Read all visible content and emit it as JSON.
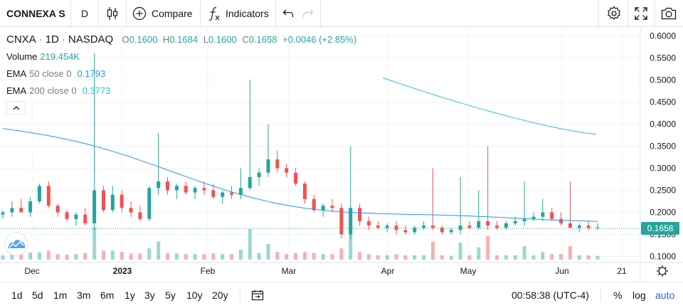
{
  "toolbar": {
    "symbol": "CONNEXA S",
    "interval": "D",
    "compare_label": "Compare",
    "indicators_label": "Indicators"
  },
  "legend": {
    "symbol": "CNXA",
    "interval": "1D",
    "exchange": "NASDAQ",
    "o_label": "O",
    "o_value": "0.1600",
    "h_label": "H",
    "h_value": "0.1684",
    "l_label": "L",
    "l_value": "0.1600",
    "c_label": "C",
    "c_value": "0.1658",
    "change": "+0.0046 (+2.85%)",
    "volume_label": "Volume",
    "volume_value": "219.454K",
    "ema50_label": "EMA",
    "ema50_params": "50 close 0",
    "ema50_value": "0.1793",
    "ema200_label": "EMA",
    "ema200_params": "200 close 0",
    "ema200_value": "0.3773"
  },
  "price_axis": {
    "ticks": [
      "0.6000",
      "0.5500",
      "0.5000",
      "0.4500",
      "0.4000",
      "0.3500",
      "0.3000",
      "0.2500",
      "0.2000",
      "0.1500",
      "0.1000"
    ],
    "last_price": "0.1658"
  },
  "time_axis": {
    "ticks": [
      "Dec",
      "2023",
      "Feb",
      "Mar",
      "Apr",
      "May",
      "Jun",
      "21"
    ]
  },
  "bottombar": {
    "ranges": [
      "1d",
      "5d",
      "1m",
      "3m",
      "6m",
      "1y",
      "3y",
      "5y",
      "10y",
      "20y"
    ],
    "clock": "00:58:38 (UTC-4)",
    "percent": "%",
    "log": "log",
    "auto": "auto"
  },
  "colors": {
    "up": "#26a69a",
    "down": "#ef5350",
    "ema50": "#2196f3",
    "ema200": "#26c6da",
    "accent": "#2962ff",
    "last_price_bg": "#26a69a"
  },
  "chart_data": {
    "type": "candlestick",
    "symbol": "CNXA",
    "interval": "1D",
    "y_range": [
      0.09,
      0.61
    ],
    "x_months": [
      "Dec",
      "2023",
      "Feb",
      "Mar",
      "Apr",
      "May",
      "Jun"
    ],
    "last_close": 0.1658,
    "ema50_last": 0.1793,
    "ema200_last": 0.3773,
    "ohlc_approx": [
      [
        0.195,
        0.205,
        0.185,
        0.2
      ],
      [
        0.2,
        0.225,
        0.19,
        0.21
      ],
      [
        0.21,
        0.23,
        0.2,
        0.2
      ],
      [
        0.2,
        0.235,
        0.19,
        0.225
      ],
      [
        0.225,
        0.265,
        0.22,
        0.26
      ],
      [
        0.26,
        0.27,
        0.21,
        0.215
      ],
      [
        0.215,
        0.22,
        0.19,
        0.2
      ],
      [
        0.2,
        0.205,
        0.18,
        0.185
      ],
      [
        0.185,
        0.2,
        0.17,
        0.195
      ],
      [
        0.195,
        0.21,
        0.17,
        0.175
      ],
      [
        0.175,
        0.56,
        0.16,
        0.25
      ],
      [
        0.25,
        0.26,
        0.2,
        0.205
      ],
      [
        0.205,
        0.26,
        0.2,
        0.24
      ],
      [
        0.24,
        0.25,
        0.2,
        0.21
      ],
      [
        0.21,
        0.225,
        0.19,
        0.2
      ],
      [
        0.2,
        0.215,
        0.18,
        0.185
      ],
      [
        0.185,
        0.26,
        0.18,
        0.255
      ],
      [
        0.255,
        0.38,
        0.24,
        0.27
      ],
      [
        0.27,
        0.28,
        0.24,
        0.25
      ],
      [
        0.25,
        0.265,
        0.23,
        0.26
      ],
      [
        0.26,
        0.27,
        0.24,
        0.245
      ],
      [
        0.245,
        0.26,
        0.23,
        0.255
      ],
      [
        0.255,
        0.27,
        0.24,
        0.25
      ],
      [
        0.25,
        0.265,
        0.23,
        0.235
      ],
      [
        0.235,
        0.25,
        0.22,
        0.245
      ],
      [
        0.245,
        0.26,
        0.23,
        0.24
      ],
      [
        0.24,
        0.3,
        0.23,
        0.255
      ],
      [
        0.255,
        0.5,
        0.25,
        0.28
      ],
      [
        0.28,
        0.3,
        0.26,
        0.29
      ],
      [
        0.29,
        0.4,
        0.28,
        0.32
      ],
      [
        0.32,
        0.34,
        0.29,
        0.3
      ],
      [
        0.3,
        0.31,
        0.28,
        0.29
      ],
      [
        0.29,
        0.3,
        0.26,
        0.265
      ],
      [
        0.265,
        0.27,
        0.22,
        0.23
      ],
      [
        0.23,
        0.24,
        0.2,
        0.205
      ],
      [
        0.205,
        0.22,
        0.19,
        0.215
      ],
      [
        0.215,
        0.23,
        0.2,
        0.21
      ],
      [
        0.21,
        0.22,
        0.14,
        0.15
      ],
      [
        0.15,
        0.35,
        0.14,
        0.21
      ],
      [
        0.21,
        0.22,
        0.17,
        0.18
      ],
      [
        0.18,
        0.19,
        0.16,
        0.17
      ],
      [
        0.17,
        0.18,
        0.16,
        0.165
      ],
      [
        0.165,
        0.175,
        0.155,
        0.17
      ],
      [
        0.17,
        0.18,
        0.15,
        0.16
      ],
      [
        0.16,
        0.17,
        0.15,
        0.155
      ],
      [
        0.155,
        0.17,
        0.15,
        0.165
      ],
      [
        0.165,
        0.18,
        0.16,
        0.17
      ],
      [
        0.17,
        0.3,
        0.16,
        0.165
      ],
      [
        0.165,
        0.17,
        0.15,
        0.155
      ],
      [
        0.155,
        0.165,
        0.15,
        0.16
      ],
      [
        0.16,
        0.28,
        0.15,
        0.17
      ],
      [
        0.17,
        0.18,
        0.16,
        0.165
      ],
      [
        0.165,
        0.25,
        0.16,
        0.18
      ],
      [
        0.18,
        0.35,
        0.16,
        0.17
      ],
      [
        0.17,
        0.18,
        0.16,
        0.165
      ],
      [
        0.165,
        0.18,
        0.16,
        0.175
      ],
      [
        0.175,
        0.19,
        0.17,
        0.18
      ],
      [
        0.18,
        0.27,
        0.17,
        0.185
      ],
      [
        0.185,
        0.2,
        0.18,
        0.19
      ],
      [
        0.19,
        0.23,
        0.18,
        0.2
      ],
      [
        0.2,
        0.21,
        0.18,
        0.185
      ],
      [
        0.185,
        0.2,
        0.17,
        0.175
      ],
      [
        0.175,
        0.27,
        0.17,
        0.165
      ],
      [
        0.165,
        0.175,
        0.155,
        0.17
      ],
      [
        0.17,
        0.18,
        0.16,
        0.165
      ],
      [
        0.165,
        0.175,
        0.16,
        0.1658
      ]
    ]
  }
}
